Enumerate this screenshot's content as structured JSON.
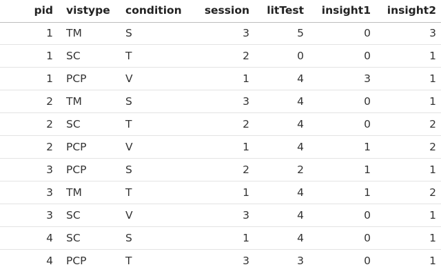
{
  "table": {
    "columns": [
      "pid",
      "vistype",
      "condition",
      "session",
      "litTest",
      "insight1",
      "insight2"
    ],
    "rows": [
      [
        1,
        "TM",
        "S",
        3,
        5,
        0,
        3
      ],
      [
        1,
        "SC",
        "T",
        2,
        0,
        0,
        1
      ],
      [
        1,
        "PCP",
        "V",
        1,
        4,
        3,
        1
      ],
      [
        2,
        "TM",
        "S",
        3,
        4,
        0,
        1
      ],
      [
        2,
        "SC",
        "T",
        2,
        4,
        0,
        2
      ],
      [
        2,
        "PCP",
        "V",
        1,
        4,
        1,
        2
      ],
      [
        3,
        "PCP",
        "S",
        2,
        2,
        1,
        1
      ],
      [
        3,
        "TM",
        "T",
        1,
        4,
        1,
        2
      ],
      [
        3,
        "SC",
        "V",
        3,
        4,
        0,
        1
      ],
      [
        4,
        "SC",
        "S",
        1,
        4,
        0,
        1
      ],
      [
        4,
        "PCP",
        "T",
        3,
        3,
        0,
        1
      ]
    ]
  }
}
